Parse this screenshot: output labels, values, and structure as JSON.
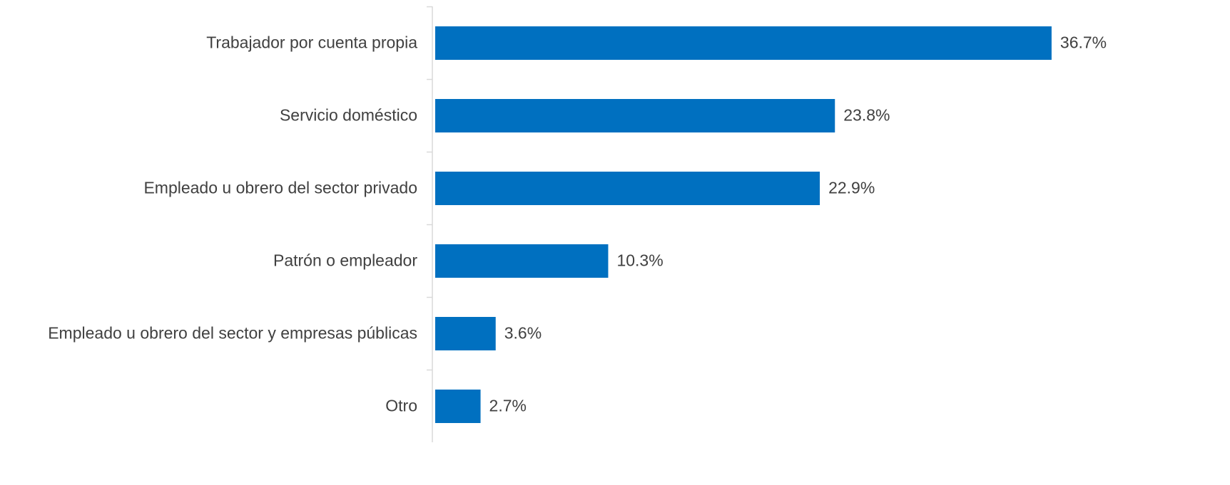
{
  "chart_data": {
    "type": "bar",
    "orientation": "horizontal",
    "categories": [
      "Trabajador por cuenta propia",
      "Servicio doméstico",
      "Empleado u obrero del sector privado",
      "Patrón o empleador",
      "Empleado u obrero del sector y empresas públicas",
      "Otro"
    ],
    "values": [
      36.7,
      23.8,
      22.9,
      10.3,
      3.6,
      2.7
    ],
    "value_labels": [
      "36.7%",
      "23.8%",
      "22.9%",
      "10.3%",
      "3.6%",
      "2.7%"
    ],
    "color": "#0070c0",
    "xlim": [
      0,
      40
    ]
  }
}
